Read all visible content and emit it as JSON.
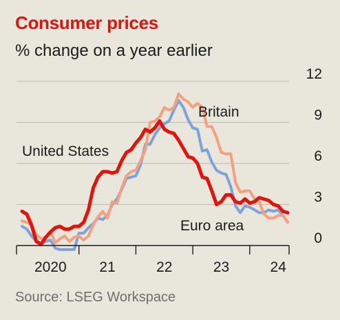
{
  "title": "Consumer prices",
  "subtitle": "% change on a year earlier",
  "source": "Source: LSEG Workspace",
  "colors": {
    "united_states": "#e3120b",
    "britain": "#f7a07f",
    "euro_area": "#7ea3dc"
  },
  "chart_data": {
    "type": "line",
    "title": "Consumer prices",
    "subtitle": "% change on a year earlier",
    "ylim": [
      0,
      12
    ],
    "y_ticks": [
      0,
      3,
      6,
      9,
      12
    ],
    "y_tick_labels": [
      "0",
      "3",
      "6",
      "9",
      "12"
    ],
    "x_range": [
      "2020-01",
      "2024-09"
    ],
    "x_tick_labels": [
      "2020",
      "21",
      "22",
      "23",
      "24"
    ],
    "x_tick_dates": [
      "2020-07",
      "2021-07",
      "2022-07",
      "2023-07",
      "2024-07"
    ],
    "grid": true,
    "series": [
      {
        "name": "Euro area",
        "key": "euro_area",
        "x": [
          "2020-01",
          "2020-02",
          "2020-03",
          "2020-04",
          "2020-05",
          "2020-06",
          "2020-07",
          "2020-08",
          "2020-09",
          "2020-10",
          "2020-11",
          "2020-12",
          "2021-01",
          "2021-02",
          "2021-03",
          "2021-04",
          "2021-05",
          "2021-06",
          "2021-07",
          "2021-08",
          "2021-09",
          "2021-10",
          "2021-11",
          "2021-12",
          "2022-01",
          "2022-02",
          "2022-03",
          "2022-04",
          "2022-05",
          "2022-06",
          "2022-07",
          "2022-08",
          "2022-09",
          "2022-10",
          "2022-11",
          "2022-12",
          "2023-01",
          "2023-02",
          "2023-03",
          "2023-04",
          "2023-05",
          "2023-06",
          "2023-07",
          "2023-08",
          "2023-09",
          "2023-10",
          "2023-11",
          "2023-12",
          "2024-01",
          "2024-02",
          "2024-03",
          "2024-04",
          "2024-05",
          "2024-06",
          "2024-07",
          "2024-08",
          "2024-09"
        ],
        "values": [
          1.4,
          1.2,
          0.7,
          0.3,
          0.1,
          0.3,
          0.4,
          -0.2,
          -0.3,
          -0.3,
          -0.3,
          -0.3,
          0.9,
          0.9,
          1.3,
          1.6,
          2.0,
          1.9,
          2.2,
          3.0,
          3.4,
          4.1,
          4.9,
          5.0,
          5.1,
          5.9,
          7.4,
          7.4,
          8.1,
          8.6,
          8.9,
          9.1,
          9.9,
          10.6,
          10.1,
          9.2,
          8.6,
          8.5,
          6.9,
          7.0,
          6.1,
          5.5,
          5.3,
          5.2,
          4.3,
          2.9,
          2.4,
          2.9,
          2.8,
          2.6,
          2.4,
          2.4,
          2.6,
          2.5,
          2.6,
          2.2,
          1.7
        ]
      },
      {
        "name": "Britain",
        "key": "britain",
        "x": [
          "2020-01",
          "2020-02",
          "2020-03",
          "2020-04",
          "2020-05",
          "2020-06",
          "2020-07",
          "2020-08",
          "2020-09",
          "2020-10",
          "2020-11",
          "2020-12",
          "2021-01",
          "2021-02",
          "2021-03",
          "2021-04",
          "2021-05",
          "2021-06",
          "2021-07",
          "2021-08",
          "2021-09",
          "2021-10",
          "2021-11",
          "2021-12",
          "2022-01",
          "2022-02",
          "2022-03",
          "2022-04",
          "2022-05",
          "2022-06",
          "2022-07",
          "2022-08",
          "2022-09",
          "2022-10",
          "2022-11",
          "2022-12",
          "2023-01",
          "2023-02",
          "2023-03",
          "2023-04",
          "2023-05",
          "2023-06",
          "2023-07",
          "2023-08",
          "2023-09",
          "2023-10",
          "2023-11",
          "2023-12",
          "2024-01",
          "2024-02",
          "2024-03",
          "2024-04",
          "2024-05",
          "2024-06",
          "2024-07",
          "2024-08",
          "2024-09"
        ],
        "values": [
          1.8,
          1.7,
          1.5,
          0.8,
          0.5,
          0.6,
          1.0,
          0.2,
          0.5,
          0.7,
          0.3,
          0.6,
          0.7,
          0.4,
          0.7,
          1.5,
          2.1,
          2.5,
          2.0,
          3.2,
          3.1,
          4.2,
          5.1,
          5.4,
          5.5,
          6.2,
          7.0,
          9.0,
          9.1,
          9.4,
          10.1,
          9.9,
          10.1,
          11.1,
          10.7,
          10.5,
          10.1,
          10.4,
          10.1,
          8.7,
          8.7,
          7.9,
          6.8,
          6.7,
          6.7,
          4.6,
          3.9,
          4.0,
          4.0,
          3.4,
          3.2,
          2.3,
          2.0,
          2.0,
          2.2,
          2.2,
          1.7
        ]
      },
      {
        "name": "United States",
        "key": "united_states",
        "x": [
          "2020-01",
          "2020-02",
          "2020-03",
          "2020-04",
          "2020-05",
          "2020-06",
          "2020-07",
          "2020-08",
          "2020-09",
          "2020-10",
          "2020-11",
          "2020-12",
          "2021-01",
          "2021-02",
          "2021-03",
          "2021-04",
          "2021-05",
          "2021-06",
          "2021-07",
          "2021-08",
          "2021-09",
          "2021-10",
          "2021-11",
          "2021-12",
          "2022-01",
          "2022-02",
          "2022-03",
          "2022-04",
          "2022-05",
          "2022-06",
          "2022-07",
          "2022-08",
          "2022-09",
          "2022-10",
          "2022-11",
          "2022-12",
          "2023-01",
          "2023-02",
          "2023-03",
          "2023-04",
          "2023-05",
          "2023-06",
          "2023-07",
          "2023-08",
          "2023-09",
          "2023-10",
          "2023-11",
          "2023-12",
          "2024-01",
          "2024-02",
          "2024-03",
          "2024-04",
          "2024-05",
          "2024-06",
          "2024-07",
          "2024-08",
          "2024-09"
        ],
        "values": [
          2.5,
          2.3,
          1.5,
          0.3,
          0.1,
          0.6,
          1.0,
          1.3,
          1.4,
          1.2,
          1.2,
          1.4,
          1.4,
          1.7,
          2.6,
          4.2,
          5.0,
          5.4,
          5.4,
          5.3,
          5.4,
          6.2,
          6.8,
          7.0,
          7.5,
          7.9,
          8.5,
          8.3,
          8.6,
          9.1,
          8.5,
          8.3,
          8.2,
          7.7,
          7.1,
          6.5,
          6.4,
          6.0,
          5.0,
          4.9,
          4.0,
          3.0,
          3.2,
          3.7,
          3.7,
          3.2,
          3.1,
          3.4,
          3.1,
          3.2,
          3.5,
          3.4,
          3.3,
          3.0,
          2.9,
          2.5,
          2.4
        ]
      }
    ],
    "series_labels": [
      "Britain",
      "United States",
      "Euro area"
    ]
  }
}
